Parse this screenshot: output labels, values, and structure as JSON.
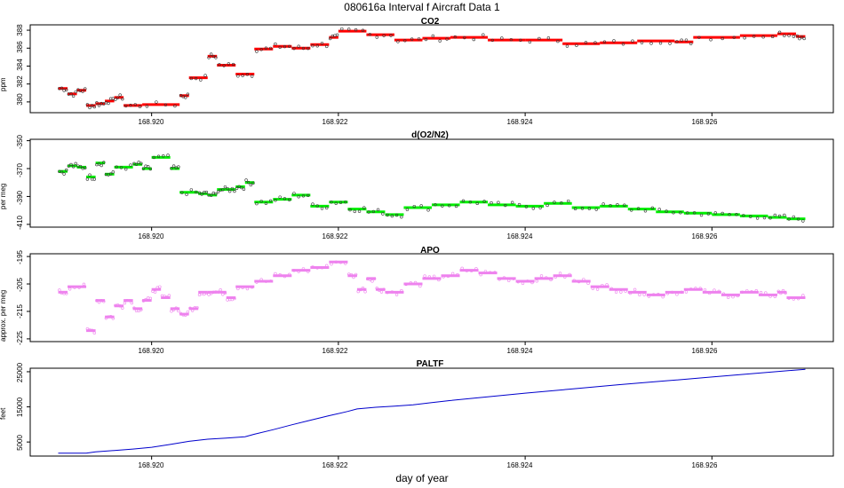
{
  "figure": {
    "title": "080616a   Interval f Aircraft Data 1",
    "xlabel": "day of year"
  },
  "chart_data": [
    {
      "type": "scatter",
      "title": "CO2",
      "ylabel": "ppm",
      "color": "#ff0000",
      "xlim": [
        168.9187,
        168.9273
      ],
      "ylim": [
        378.8,
        388.6
      ],
      "xticks": [
        "168.920",
        "168.922",
        "168.924",
        "168.926"
      ],
      "yticks": [
        "380",
        "382",
        "384",
        "386",
        "388"
      ],
      "segments": [
        {
          "x0": 168.919,
          "x1": 168.9191,
          "y": 381.5
        },
        {
          "x0": 168.9191,
          "x1": 168.9192,
          "y": 380.9
        },
        {
          "x0": 168.9192,
          "x1": 168.9193,
          "y": 381.3
        },
        {
          "x0": 168.9193,
          "x1": 168.9194,
          "y": 379.6
        },
        {
          "x0": 168.9194,
          "x1": 168.9195,
          "y": 379.8
        },
        {
          "x0": 168.9195,
          "x1": 168.9196,
          "y": 380.1
        },
        {
          "x0": 168.9196,
          "x1": 168.9197,
          "y": 380.5
        },
        {
          "x0": 168.9197,
          "x1": 168.9199,
          "y": 379.6
        },
        {
          "x0": 168.9199,
          "x1": 168.9203,
          "y": 379.7
        },
        {
          "x0": 168.9203,
          "x1": 168.9204,
          "y": 380.7
        },
        {
          "x0": 168.9204,
          "x1": 168.9206,
          "y": 382.7
        },
        {
          "x0": 168.9206,
          "x1": 168.9207,
          "y": 385.1
        },
        {
          "x0": 168.9207,
          "x1": 168.9209,
          "y": 384.1
        },
        {
          "x0": 168.9209,
          "x1": 168.9211,
          "y": 383.1
        },
        {
          "x0": 168.9211,
          "x1": 168.9213,
          "y": 385.9
        },
        {
          "x0": 168.9213,
          "x1": 168.9215,
          "y": 386.2
        },
        {
          "x0": 168.9215,
          "x1": 168.9217,
          "y": 386.0
        },
        {
          "x0": 168.9217,
          "x1": 168.9219,
          "y": 386.4
        },
        {
          "x0": 168.9219,
          "x1": 168.922,
          "y": 387.2
        },
        {
          "x0": 168.922,
          "x1": 168.9223,
          "y": 387.9
        },
        {
          "x0": 168.9223,
          "x1": 168.9226,
          "y": 387.5
        },
        {
          "x0": 168.9226,
          "x1": 168.9229,
          "y": 386.9
        },
        {
          "x0": 168.9229,
          "x1": 168.9232,
          "y": 387.1
        },
        {
          "x0": 168.9232,
          "x1": 168.9236,
          "y": 387.2
        },
        {
          "x0": 168.9236,
          "x1": 168.924,
          "y": 386.9
        },
        {
          "x0": 168.924,
          "x1": 168.9244,
          "y": 386.9
        },
        {
          "x0": 168.9244,
          "x1": 168.9248,
          "y": 386.5
        },
        {
          "x0": 168.9248,
          "x1": 168.9252,
          "y": 386.6
        },
        {
          "x0": 168.9252,
          "x1": 168.9256,
          "y": 386.8
        },
        {
          "x0": 168.9256,
          "x1": 168.9258,
          "y": 386.7
        },
        {
          "x0": 168.9258,
          "x1": 168.9263,
          "y": 387.2
        },
        {
          "x0": 168.9263,
          "x1": 168.9267,
          "y": 387.4
        },
        {
          "x0": 168.9267,
          "x1": 168.9269,
          "y": 387.6
        },
        {
          "x0": 168.9269,
          "x1": 168.927,
          "y": 387.3
        }
      ]
    },
    {
      "type": "scatter",
      "title": "d(O2/N2)",
      "ylabel": "per meg",
      "color": "#00ee00",
      "xlim": [
        168.9187,
        168.9273
      ],
      "ylim": [
        -412,
        -349
      ],
      "xticks": [
        "168.920",
        "168.922",
        "168.924",
        "168.926"
      ],
      "yticks": [
        "-350",
        "-370",
        "-390",
        "-410"
      ],
      "segments": [
        {
          "x0": 168.919,
          "x1": 168.9191,
          "y": -372
        },
        {
          "x0": 168.9191,
          "x1": 168.9192,
          "y": -368
        },
        {
          "x0": 168.9192,
          "x1": 168.9193,
          "y": -369
        },
        {
          "x0": 168.9193,
          "x1": 168.9194,
          "y": -376
        },
        {
          "x0": 168.9194,
          "x1": 168.9195,
          "y": -366
        },
        {
          "x0": 168.9195,
          "x1": 168.9196,
          "y": -374
        },
        {
          "x0": 168.9196,
          "x1": 168.9198,
          "y": -369
        },
        {
          "x0": 168.9198,
          "x1": 168.9199,
          "y": -367
        },
        {
          "x0": 168.9199,
          "x1": 168.92,
          "y": -370
        },
        {
          "x0": 168.92,
          "x1": 168.9202,
          "y": -362
        },
        {
          "x0": 168.9202,
          "x1": 168.9203,
          "y": -370
        },
        {
          "x0": 168.9203,
          "x1": 168.9205,
          "y": -387
        },
        {
          "x0": 168.9205,
          "x1": 168.9206,
          "y": -388
        },
        {
          "x0": 168.9206,
          "x1": 168.9207,
          "y": -389
        },
        {
          "x0": 168.9207,
          "x1": 168.9208,
          "y": -385
        },
        {
          "x0": 168.9208,
          "x1": 168.9209,
          "y": -385
        },
        {
          "x0": 168.9209,
          "x1": 168.921,
          "y": -383
        },
        {
          "x0": 168.921,
          "x1": 168.9211,
          "y": -380
        },
        {
          "x0": 168.9211,
          "x1": 168.9213,
          "y": -394
        },
        {
          "x0": 168.9213,
          "x1": 168.9215,
          "y": -392
        },
        {
          "x0": 168.9215,
          "x1": 168.9217,
          "y": -389
        },
        {
          "x0": 168.9217,
          "x1": 168.9219,
          "y": -397
        },
        {
          "x0": 168.9219,
          "x1": 168.9221,
          "y": -394
        },
        {
          "x0": 168.9221,
          "x1": 168.9223,
          "y": -399
        },
        {
          "x0": 168.9223,
          "x1": 168.9225,
          "y": -401
        },
        {
          "x0": 168.9225,
          "x1": 168.9227,
          "y": -403
        },
        {
          "x0": 168.9227,
          "x1": 168.923,
          "y": -398
        },
        {
          "x0": 168.923,
          "x1": 168.9233,
          "y": -396
        },
        {
          "x0": 168.9233,
          "x1": 168.9236,
          "y": -394
        },
        {
          "x0": 168.9236,
          "x1": 168.9239,
          "y": -396
        },
        {
          "x0": 168.9239,
          "x1": 168.9242,
          "y": -397
        },
        {
          "x0": 168.9242,
          "x1": 168.9245,
          "y": -395
        },
        {
          "x0": 168.9245,
          "x1": 168.9248,
          "y": -398
        },
        {
          "x0": 168.9248,
          "x1": 168.9251,
          "y": -397
        },
        {
          "x0": 168.9251,
          "x1": 168.9254,
          "y": -399
        },
        {
          "x0": 168.9254,
          "x1": 168.9257,
          "y": -401
        },
        {
          "x0": 168.9257,
          "x1": 168.926,
          "y": -402
        },
        {
          "x0": 168.926,
          "x1": 168.9263,
          "y": -403
        },
        {
          "x0": 168.9263,
          "x1": 168.9266,
          "y": -404
        },
        {
          "x0": 168.9266,
          "x1": 168.9268,
          "y": -405
        },
        {
          "x0": 168.9268,
          "x1": 168.927,
          "y": -406
        }
      ]
    },
    {
      "type": "scatter",
      "title": "APO",
      "ylabel": "approx. per meg",
      "color": "#ee82ee",
      "xlim": [
        168.9187,
        168.9273
      ],
      "ylim": [
        -226,
        -194
      ],
      "xticks": [
        "168.920",
        "168.922",
        "168.924",
        "168.926"
      ],
      "yticks": [
        "-195",
        "-205",
        "-215",
        "-225"
      ],
      "segments": [
        {
          "x0": 168.919,
          "x1": 168.9191,
          "y": -208
        },
        {
          "x0": 168.9191,
          "x1": 168.9193,
          "y": -206
        },
        {
          "x0": 168.9193,
          "x1": 168.9194,
          "y": -222
        },
        {
          "x0": 168.9194,
          "x1": 168.9195,
          "y": -211
        },
        {
          "x0": 168.9195,
          "x1": 168.9196,
          "y": -217
        },
        {
          "x0": 168.9196,
          "x1": 168.9197,
          "y": -213
        },
        {
          "x0": 168.9197,
          "x1": 168.9198,
          "y": -211
        },
        {
          "x0": 168.9198,
          "x1": 168.9199,
          "y": -214
        },
        {
          "x0": 168.9199,
          "x1": 168.92,
          "y": -211
        },
        {
          "x0": 168.92,
          "x1": 168.9201,
          "y": -207
        },
        {
          "x0": 168.9201,
          "x1": 168.9202,
          "y": -210
        },
        {
          "x0": 168.9202,
          "x1": 168.9203,
          "y": -214
        },
        {
          "x0": 168.9203,
          "x1": 168.9204,
          "y": -216
        },
        {
          "x0": 168.9204,
          "x1": 168.9205,
          "y": -214
        },
        {
          "x0": 168.9205,
          "x1": 168.9206,
          "y": -208
        },
        {
          "x0": 168.9206,
          "x1": 168.9207,
          "y": -208
        },
        {
          "x0": 168.9207,
          "x1": 168.9208,
          "y": -208
        },
        {
          "x0": 168.9208,
          "x1": 168.9209,
          "y": -210
        },
        {
          "x0": 168.9209,
          "x1": 168.9211,
          "y": -206
        },
        {
          "x0": 168.9211,
          "x1": 168.9213,
          "y": -204
        },
        {
          "x0": 168.9213,
          "x1": 168.9215,
          "y": -202
        },
        {
          "x0": 168.9215,
          "x1": 168.9217,
          "y": -200
        },
        {
          "x0": 168.9217,
          "x1": 168.9219,
          "y": -199
        },
        {
          "x0": 168.9219,
          "x1": 168.9221,
          "y": -197
        },
        {
          "x0": 168.9221,
          "x1": 168.9222,
          "y": -202
        },
        {
          "x0": 168.9222,
          "x1": 168.9223,
          "y": -207
        },
        {
          "x0": 168.9223,
          "x1": 168.9224,
          "y": -203
        },
        {
          "x0": 168.9224,
          "x1": 168.9225,
          "y": -207
        },
        {
          "x0": 168.9225,
          "x1": 168.9227,
          "y": -208
        },
        {
          "x0": 168.9227,
          "x1": 168.9229,
          "y": -205
        },
        {
          "x0": 168.9229,
          "x1": 168.9231,
          "y": -203
        },
        {
          "x0": 168.9231,
          "x1": 168.9233,
          "y": -202
        },
        {
          "x0": 168.9233,
          "x1": 168.9235,
          "y": -200
        },
        {
          "x0": 168.9235,
          "x1": 168.9237,
          "y": -201
        },
        {
          "x0": 168.9237,
          "x1": 168.9239,
          "y": -203
        },
        {
          "x0": 168.9239,
          "x1": 168.9241,
          "y": -204
        },
        {
          "x0": 168.9241,
          "x1": 168.9243,
          "y": -203
        },
        {
          "x0": 168.9243,
          "x1": 168.9245,
          "y": -202
        },
        {
          "x0": 168.9245,
          "x1": 168.9247,
          "y": -204
        },
        {
          "x0": 168.9247,
          "x1": 168.9249,
          "y": -206
        },
        {
          "x0": 168.9249,
          "x1": 168.9251,
          "y": -207
        },
        {
          "x0": 168.9251,
          "x1": 168.9253,
          "y": -208
        },
        {
          "x0": 168.9253,
          "x1": 168.9255,
          "y": -209
        },
        {
          "x0": 168.9255,
          "x1": 168.9257,
          "y": -208
        },
        {
          "x0": 168.9257,
          "x1": 168.9259,
          "y": -207
        },
        {
          "x0": 168.9259,
          "x1": 168.9261,
          "y": -208
        },
        {
          "x0": 168.9261,
          "x1": 168.9263,
          "y": -209
        },
        {
          "x0": 168.9263,
          "x1": 168.9265,
          "y": -208
        },
        {
          "x0": 168.9265,
          "x1": 168.9267,
          "y": -209
        },
        {
          "x0": 168.9267,
          "x1": 168.9268,
          "y": -208
        },
        {
          "x0": 168.9268,
          "x1": 168.927,
          "y": -210
        }
      ]
    },
    {
      "type": "line",
      "title": "PALTF",
      "ylabel": "feet",
      "color": "#0000cc",
      "xlim": [
        168.9187,
        168.9273
      ],
      "ylim": [
        1000,
        26000
      ],
      "xticks": [
        "168.920",
        "168.922",
        "168.924",
        "168.926"
      ],
      "yticks": [
        "5000",
        "15000",
        "25000"
      ],
      "x": [
        168.919,
        168.9193,
        168.9194,
        168.9196,
        168.9198,
        168.92,
        168.9202,
        168.9204,
        168.9206,
        168.9208,
        168.921,
        168.9211,
        168.9213,
        168.9215,
        168.9217,
        168.9219,
        168.9221,
        168.9222,
        168.9224,
        168.9226,
        168.9228,
        168.923,
        168.9232,
        168.9235,
        168.924,
        168.9245,
        168.925,
        168.9255,
        168.926,
        168.9265,
        168.927
      ],
      "y": [
        1800,
        1800,
        2200,
        2600,
        3000,
        3500,
        4300,
        5200,
        5800,
        6100,
        6500,
        7200,
        8500,
        9900,
        11200,
        12500,
        13700,
        14400,
        14900,
        15200,
        15600,
        16200,
        16800,
        17600,
        18900,
        20100,
        21300,
        22400,
        23500,
        24600,
        25700
      ]
    }
  ]
}
